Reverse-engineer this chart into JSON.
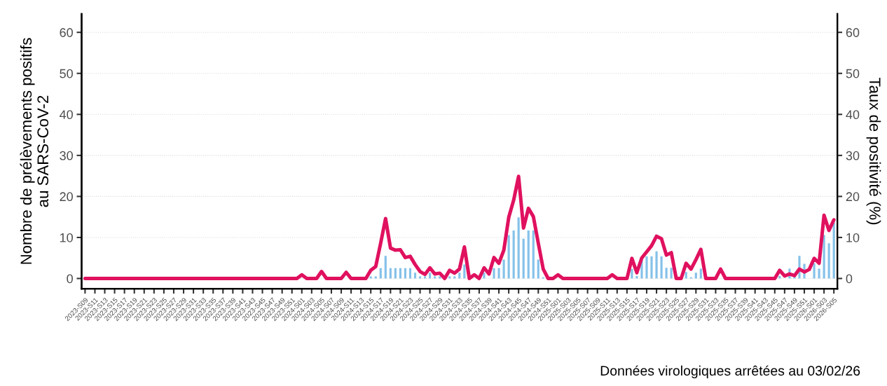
{
  "chart_data": {
    "type": "bar",
    "ylabel": "Nombre de prélèvements positifs\nau SARS-CoV-2",
    "y2label": "Taux de positivité (%)",
    "annotations": [
      "Données virologiques arrêtées au 03/02/26"
    ],
    "categories": [
      "2023-S09",
      null,
      "2023-S11",
      null,
      "2023-S13",
      null,
      "2023-S15",
      null,
      "2023-S17",
      null,
      "2023-S19",
      null,
      "2023-S21",
      null,
      "2023-S23",
      null,
      "2023-S25",
      null,
      "2023-S27",
      null,
      "2023-S29",
      null,
      "2023-S31",
      null,
      "2023-S33",
      null,
      "2023-S35",
      null,
      "2023-S37",
      null,
      "2023-S39",
      null,
      "2023-S41",
      null,
      "2023-S43",
      null,
      "2023-S45",
      null,
      "2023-S47",
      null,
      "2023-S49",
      null,
      "2023-S51",
      null,
      "2024-S01",
      null,
      "2024-S03",
      null,
      "2024-S05",
      null,
      "2024-S07",
      null,
      "2024-S09",
      null,
      "2024-S11",
      null,
      "2024-S13",
      null,
      "2024-S15",
      null,
      "2024-S17",
      null,
      "2024-S19",
      null,
      "2024-S21",
      null,
      "2024-S23",
      null,
      "2024-S25",
      null,
      "2024-S27",
      null,
      "2024-S29",
      null,
      "2024-S31",
      null,
      "2024-S33",
      null,
      "2024-S35",
      null,
      "2024-S37",
      null,
      "2024-S39",
      null,
      "2024-S41",
      null,
      "2024-S43",
      null,
      "2024-S45",
      null,
      "2024-S47",
      null,
      "2024-S49",
      null,
      "2024-S51",
      null,
      "2025-S01",
      null,
      "2025-S03",
      null,
      "2025-S05",
      null,
      "2025-S07",
      null,
      "2025-S09",
      null,
      "2025-S11",
      null,
      "2025-S13",
      null,
      "2025-S15",
      null,
      "2025-S17",
      null,
      "2025-S19",
      null,
      "2025-S21",
      null,
      "2025-S23",
      null,
      "2025-S25",
      null,
      "2025-S27",
      null,
      "2025-S29",
      null,
      "2025-S31",
      null,
      "2025-S33",
      null,
      "2025-S35",
      null,
      "2025-S37",
      null,
      "2025-S39",
      null,
      "2025-S41",
      null,
      "2025-S43",
      null,
      "2025-S45",
      null,
      "2025-S47",
      null,
      "2025-S49",
      null,
      "2025-S51",
      null,
      "2026-S01",
      null,
      "2026-S03",
      null,
      "2026-S05"
    ],
    "series": [
      {
        "color": "#85c1e9",
        "values": [
          0,
          0,
          0,
          0,
          0,
          0,
          0,
          0,
          0,
          0,
          0,
          0,
          0,
          0,
          0,
          0,
          0,
          0,
          0,
          0,
          0,
          0,
          0,
          0,
          0,
          0,
          0,
          0,
          0,
          0,
          0,
          0,
          0,
          0,
          0,
          0,
          0,
          0,
          0,
          0,
          0,
          0,
          0,
          0,
          0,
          0,
          0,
          0,
          0,
          0,
          0,
          0,
          0,
          0,
          0,
          0,
          0,
          0,
          0.5,
          0.5,
          2.5,
          5.5,
          2.5,
          2.5,
          2.5,
          2.5,
          2.5,
          1.4,
          0.5,
          0.5,
          1.4,
          0.5,
          0.5,
          0,
          0.5,
          0.5,
          1.4,
          3.4,
          0,
          0,
          0,
          1.4,
          null,
          2.5,
          2.5,
          4.6,
          10.6,
          11.7,
          14.9,
          9.7,
          11.7,
          11.7,
          4.6,
          0.3,
          0,
          0,
          0,
          0,
          0,
          0,
          0,
          0,
          0,
          0,
          0,
          0,
          0,
          0,
          0,
          0,
          0,
          2.3,
          0.6,
          4.6,
          5.4,
          5.4,
          6.6,
          5.4,
          2.6,
          2.6,
          0,
          0,
          1.6,
          0.3,
          1.4,
          2.4,
          0,
          0,
          0,
          0,
          0,
          0,
          0,
          0,
          0,
          0,
          0,
          0,
          0,
          0,
          0,
          0.6,
          0,
          2.4,
          0.6,
          5.5,
          3.6,
          null,
          3.7,
          2.4,
          10.6,
          8.6,
          13.6
        ]
      },
      {
        "type": "line",
        "axis": "y2",
        "color": "#e0115f",
        "values": [
          0,
          0,
          0,
          0,
          0,
          0,
          0,
          0,
          0,
          0,
          0,
          0,
          0,
          0,
          0,
          0,
          0,
          0,
          0,
          0,
          0,
          0,
          0,
          0,
          0,
          0,
          0,
          0,
          0,
          0,
          0,
          0,
          0,
          0,
          0,
          0,
          0,
          0,
          0,
          0,
          0,
          0,
          0,
          0,
          0.9,
          0,
          0,
          0,
          1.7,
          0,
          0,
          0,
          0,
          1.5,
          0,
          0,
          0,
          0,
          2.0,
          2.9,
          8.6,
          14.6,
          7.4,
          6.9,
          7.0,
          5.1,
          5.4,
          3.4,
          1.7,
          1.0,
          2.6,
          1.1,
          1.3,
          0,
          2.0,
          1.3,
          2.3,
          7.7,
          0,
          0.9,
          0,
          2.6,
          1.1,
          5.1,
          3.7,
          6.9,
          14.9,
          19.1,
          24.9,
          12.3,
          17.1,
          15.1,
          8.6,
          2.3,
          0,
          0,
          0.9,
          0,
          0,
          0,
          0,
          0,
          0,
          0,
          0,
          0,
          0,
          0.9,
          0,
          0,
          0,
          4.9,
          1.4,
          5.0,
          6.5,
          8.0,
          10.3,
          9.7,
          5.7,
          6.3,
          0,
          0,
          3.7,
          2.3,
          4.6,
          7.1,
          0,
          0,
          0,
          2.3,
          0,
          0,
          0,
          0,
          0,
          0,
          0,
          0,
          0,
          0,
          0,
          2.0,
          0.6,
          1.1,
          0.7,
          2.3,
          1.6,
          2.2,
          4.9,
          3.7,
          15.4,
          11.7,
          14.3
        ]
      }
    ],
    "ylim": [
      -2.5,
      64.5
    ],
    "yticks": [
      0,
      10,
      20,
      30,
      40,
      50,
      60
    ],
    "y2lim": [
      -2.5,
      64.5
    ],
    "y2ticks": [
      0,
      10,
      20,
      30,
      40,
      50,
      60
    ],
    "grid": "y"
  }
}
